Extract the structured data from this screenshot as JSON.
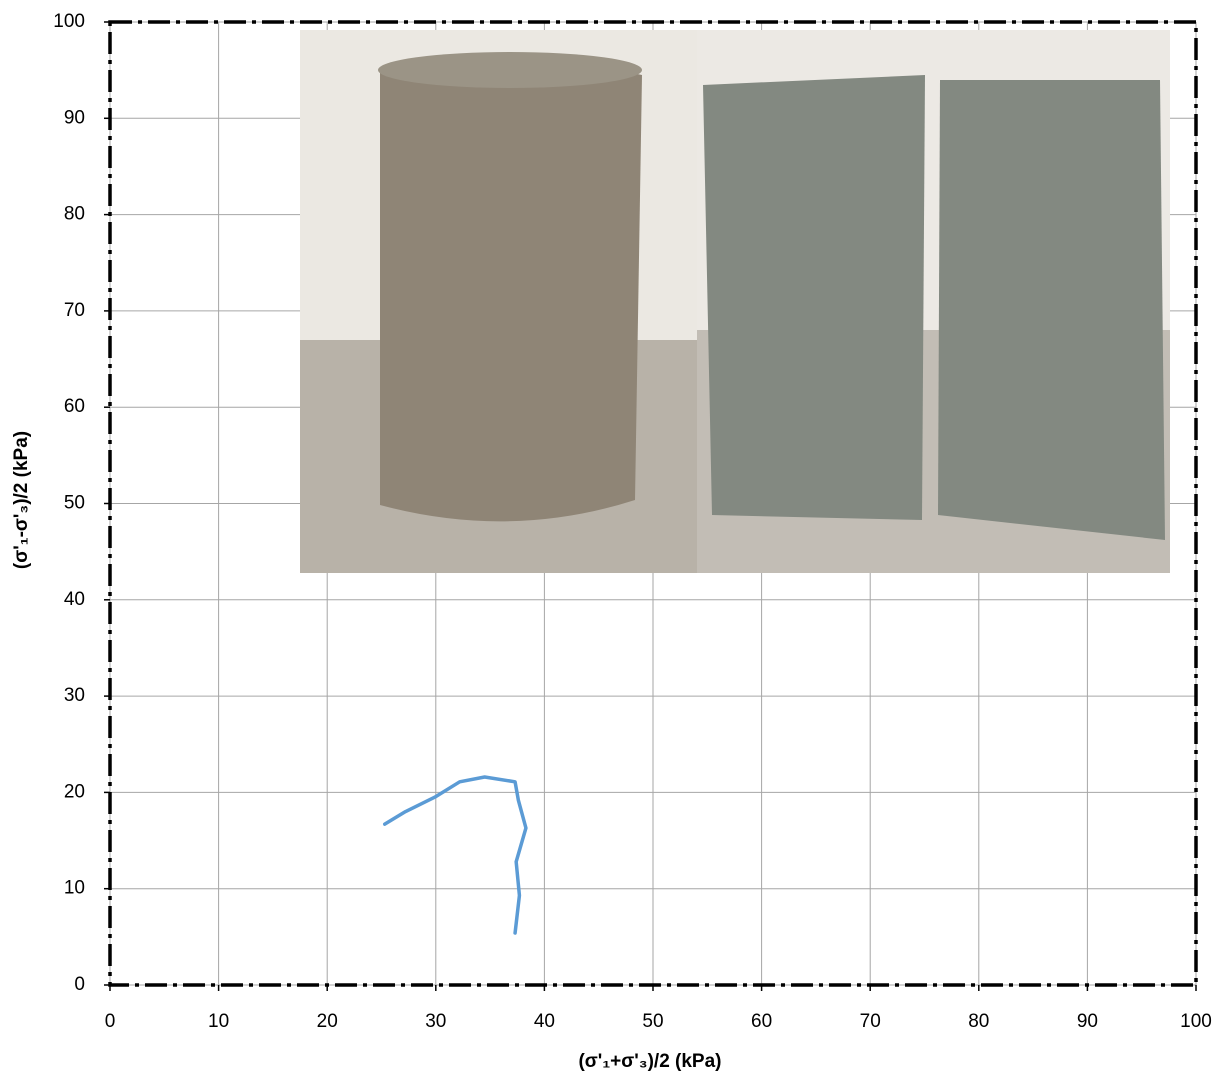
{
  "chart_data": {
    "type": "line",
    "x_label": "(σ'₁+σ'₃)/2  (kPa)",
    "y_label": "(σ'₁-σ'₃)/2  (kPa)",
    "x": [
      37.3,
      37.7,
      37.4,
      38.3,
      37.6,
      37.3,
      34.5,
      32.2,
      29.9,
      27.2,
      25.3
    ],
    "series": [
      {
        "color": "#5b9bd5",
        "values": [
          5.4,
          9.3,
          12.8,
          16.3,
          19.2,
          21.1,
          21.6,
          21.1,
          19.5,
          18.0,
          16.7
        ]
      }
    ],
    "xlim": [
      0,
      100
    ],
    "xticks": [
      0,
      10,
      20,
      30,
      40,
      50,
      60,
      70,
      80,
      90,
      100
    ],
    "ylim": [
      0,
      100
    ],
    "yticks": [
      0,
      10,
      20,
      30,
      40,
      50,
      60,
      70,
      80,
      90,
      100
    ],
    "grid": true
  }
}
